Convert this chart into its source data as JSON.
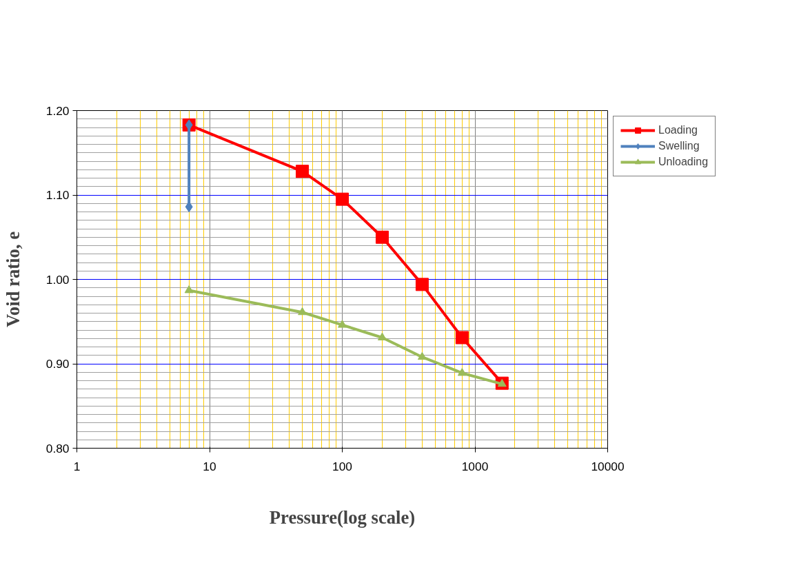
{
  "chart_data": {
    "type": "line",
    "xlabel": "Pressure(log scale)",
    "ylabel": "Void ratio, e",
    "log": "x",
    "xlim": [
      1,
      10000
    ],
    "xticks": [
      1,
      {
        "value": 2,
        "label": null
      },
      {
        "value": 3,
        "label": null
      },
      {
        "value": 4,
        "label": null
      },
      {
        "value": 5,
        "label": null
      },
      {
        "value": 6,
        "label": null
      },
      {
        "value": 7,
        "label": null
      },
      {
        "value": 8,
        "label": null
      },
      {
        "value": 9,
        "label": null
      },
      10,
      {
        "value": 20,
        "label": null
      },
      {
        "value": 30,
        "label": null
      },
      {
        "value": 40,
        "label": null
      },
      {
        "value": 50,
        "label": null
      },
      {
        "value": 60,
        "label": null
      },
      {
        "value": 70,
        "label": null
      },
      {
        "value": 80,
        "label": null
      },
      {
        "value": 90,
        "label": null
      },
      100,
      {
        "value": 200,
        "label": null
      },
      {
        "value": 300,
        "label": null
      },
      {
        "value": 400,
        "label": null
      },
      {
        "value": 500,
        "label": null
      },
      {
        "value": 600,
        "label": null
      },
      {
        "value": 700,
        "label": null
      },
      {
        "value": 800,
        "label": null
      },
      {
        "value": 900,
        "label": null
      },
      1000,
      {
        "value": 2000,
        "label": null
      },
      {
        "value": 3000,
        "label": null
      },
      {
        "value": 4000,
        "label": null
      },
      {
        "value": 5000,
        "label": null
      },
      {
        "value": 6000,
        "label": null
      },
      {
        "value": 7000,
        "label": null
      },
      {
        "value": 8000,
        "label": null
      },
      {
        "value": 9000,
        "label": null
      },
      10000
    ],
    "ylim": [
      0.8,
      1.2
    ],
    "yticks": [
      {
        "value": 0.8,
        "label": "0.80"
      },
      {
        "value": 0.81,
        "label": null
      },
      {
        "value": 0.82,
        "label": null
      },
      {
        "value": 0.83,
        "label": null
      },
      {
        "value": 0.84,
        "label": null
      },
      {
        "value": 0.85,
        "label": null
      },
      {
        "value": 0.86,
        "label": null
      },
      {
        "value": 0.87,
        "label": null
      },
      {
        "value": 0.88,
        "label": null
      },
      {
        "value": 0.89,
        "label": null
      },
      {
        "value": 0.9,
        "label": "0.90"
      },
      {
        "value": 0.91,
        "label": null
      },
      {
        "value": 0.92,
        "label": null
      },
      {
        "value": 0.93,
        "label": null
      },
      {
        "value": 0.94,
        "label": null
      },
      {
        "value": 0.95,
        "label": null
      },
      {
        "value": 0.96,
        "label": null
      },
      {
        "value": 0.97,
        "label": null
      },
      {
        "value": 0.98,
        "label": null
      },
      {
        "value": 0.99,
        "label": null
      },
      {
        "value": 1.0,
        "label": "1.00"
      },
      {
        "value": 1.01,
        "label": null
      },
      {
        "value": 1.02,
        "label": null
      },
      {
        "value": 1.03,
        "label": null
      },
      {
        "value": 1.04,
        "label": null
      },
      {
        "value": 1.05,
        "label": null
      },
      {
        "value": 1.06,
        "label": null
      },
      {
        "value": 1.07,
        "label": null
      },
      {
        "value": 1.08,
        "label": null
      },
      {
        "value": 1.09,
        "label": null
      },
      {
        "value": 1.1,
        "label": "1.10"
      },
      {
        "value": 1.11,
        "label": null
      },
      {
        "value": 1.12,
        "label": null
      },
      {
        "value": 1.13,
        "label": null
      },
      {
        "value": 1.14,
        "label": null
      },
      {
        "value": 1.15,
        "label": null
      },
      {
        "value": 1.16,
        "label": null
      },
      {
        "value": 1.17,
        "label": null
      },
      {
        "value": 1.18,
        "label": null
      },
      {
        "value": 1.19,
        "label": null
      },
      {
        "value": 1.2,
        "label": "1.20"
      }
    ],
    "grid": true,
    "legend": "top right",
    "series": [
      {
        "name": "Loading",
        "color": "#ff0000",
        "marker": "square",
        "x": [
          7,
          50,
          100,
          200,
          400,
          800,
          1600
        ],
        "values": [
          1.183,
          1.128,
          1.095,
          1.05,
          0.994,
          0.931,
          0.877
        ]
      },
      {
        "name": "Swelling",
        "color": "#4f81bd",
        "marker": "diamond",
        "x": [
          7,
          7
        ],
        "values": [
          1.183,
          1.086
        ]
      },
      {
        "name": "Unloading",
        "color": "#9bbb59",
        "marker": "triangle",
        "x": [
          7,
          50,
          100,
          200,
          400,
          800,
          1600
        ],
        "values": [
          0.987,
          0.961,
          0.946,
          0.931,
          0.908,
          0.889,
          0.876
        ]
      }
    ]
  }
}
